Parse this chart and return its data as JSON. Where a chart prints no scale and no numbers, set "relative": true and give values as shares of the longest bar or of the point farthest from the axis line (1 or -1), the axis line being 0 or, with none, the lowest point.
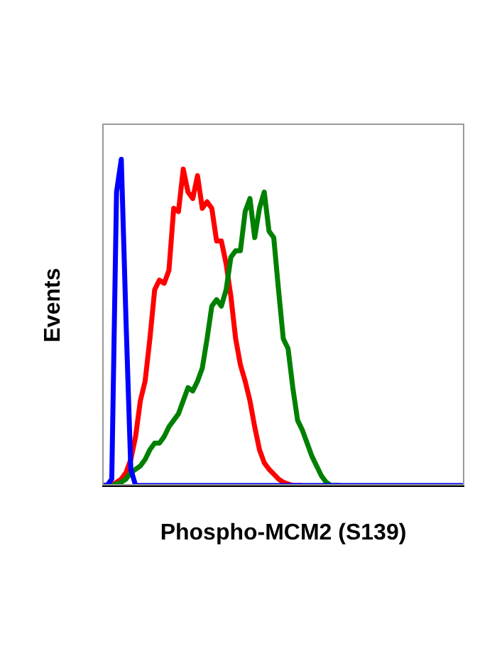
{
  "chart_data": {
    "type": "line",
    "relative": true,
    "xlabel": "Phospho-MCM2 (S139)",
    "ylabel": "Events",
    "marker": "none",
    "line_style": "solid",
    "categories": [
      null,
      null,
      null,
      null,
      null,
      null,
      null,
      null,
      null,
      null,
      null,
      null,
      null,
      null,
      null,
      null,
      null,
      null,
      null,
      null,
      null,
      null,
      null,
      null,
      null,
      null,
      null,
      null,
      null,
      null,
      null,
      null,
      null,
      null,
      null,
      null,
      null,
      null,
      null,
      null,
      null,
      null,
      null,
      null,
      null,
      null,
      null,
      null,
      null,
      null,
      null,
      null,
      null,
      null,
      null,
      null,
      null,
      null,
      null,
      null,
      null,
      null,
      null,
      null,
      null,
      null,
      null,
      null,
      null,
      null,
      null,
      null,
      null,
      null,
      null,
      null,
      null
    ],
    "series": [
      {
        "color": "#ff0000",
        "values": [
          0,
          0,
          0,
          0.01,
          0.02,
          0.04,
          0.08,
          0.15,
          0.26,
          0.32,
          0.45,
          0.6,
          0.63,
          0.62,
          0.66,
          0.85,
          0.84,
          0.97,
          0.9,
          0.88,
          0.95,
          0.85,
          0.87,
          0.85,
          0.75,
          0.75,
          0.68,
          0.58,
          0.45,
          0.37,
          0.32,
          0.26,
          0.18,
          0.11,
          0.07,
          0.05,
          0.035,
          0.02,
          0.01,
          0.005,
          0,
          0,
          0,
          null,
          null,
          null,
          null,
          null,
          null,
          null,
          null,
          null,
          null,
          null,
          null,
          null,
          null,
          null,
          null,
          null,
          null,
          null,
          null,
          null,
          null,
          null,
          null,
          null,
          null,
          null,
          null,
          null,
          null,
          null,
          null,
          null,
          null
        ]
      },
      {
        "color": "#008000",
        "values": [
          0,
          0,
          0,
          0.005,
          0.01,
          0.02,
          0.04,
          0.05,
          0.06,
          0.08,
          0.11,
          0.13,
          0.13,
          0.15,
          0.18,
          0.2,
          0.22,
          0.26,
          0.3,
          0.29,
          0.32,
          0.36,
          0.45,
          0.55,
          0.57,
          0.55,
          0.6,
          0.7,
          0.72,
          0.72,
          0.84,
          0.88,
          0.76,
          0.85,
          0.9,
          0.78,
          0.76,
          0.6,
          0.45,
          0.42,
          0.3,
          0.2,
          0.17,
          0.13,
          0.09,
          0.06,
          0.03,
          0.01,
          0,
          0,
          0,
          null,
          null,
          null,
          null,
          null,
          null,
          null,
          null,
          null,
          null,
          null,
          null,
          null,
          null,
          null,
          null,
          null,
          null,
          null,
          null,
          null,
          null,
          null,
          null,
          null,
          null
        ]
      },
      {
        "color": "#0000ff",
        "values": [
          0,
          0,
          0.02,
          0.9,
          1,
          0.5,
          0.05,
          0,
          0,
          0,
          0,
          0,
          0,
          0,
          0,
          0,
          0,
          0,
          0,
          0,
          0,
          0,
          0,
          0,
          0,
          0,
          0,
          0,
          0,
          0,
          0,
          0,
          0,
          0,
          0,
          0,
          0,
          0,
          0,
          0,
          0,
          0,
          0,
          0,
          0,
          0,
          0,
          0,
          0,
          0,
          0,
          0,
          0,
          0,
          0,
          0,
          0,
          0,
          0,
          0,
          0,
          0,
          0,
          0,
          0,
          0,
          0,
          0,
          0,
          0,
          0,
          0,
          0,
          0,
          0,
          0,
          0
        ]
      }
    ]
  }
}
